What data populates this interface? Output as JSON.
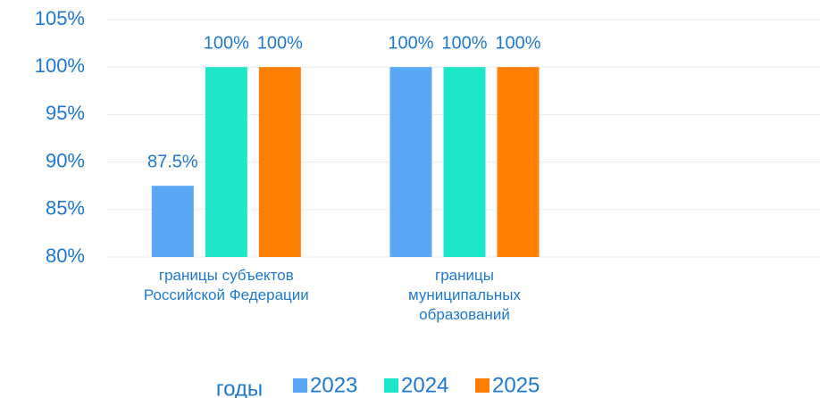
{
  "chart_data": {
    "type": "bar",
    "categories": [
      "границы субъектов\nРоссийской Федерации",
      "границы\nмуниципальных\nобразований",
      null
    ],
    "series": [
      {
        "name": "2023",
        "color": "#5aa8f5",
        "values": [
          87.5,
          100,
          null
        ],
        "value_labels": [
          "87.5%",
          "100%",
          null
        ]
      },
      {
        "name": "2024",
        "color": "#1ee6c8",
        "values": [
          100,
          100,
          null
        ],
        "value_labels": [
          "100%",
          "100%",
          null
        ]
      },
      {
        "name": "2025",
        "color": "#ff7f00",
        "values": [
          100,
          100,
          null
        ],
        "value_labels": [
          "100%",
          "100%",
          null
        ]
      }
    ],
    "legend_title": "годы",
    "ylim": [
      80,
      105
    ],
    "yticks": [
      {
        "value": 80,
        "label": "80%"
      },
      {
        "value": 85,
        "label": "85%"
      },
      {
        "value": 90,
        "label": "90%"
      },
      {
        "value": 95,
        "label": "95%"
      },
      {
        "value": 100,
        "label": "100%"
      },
      {
        "value": 105,
        "label": "105%"
      }
    ],
    "grid": true,
    "legend": "bottom"
  }
}
